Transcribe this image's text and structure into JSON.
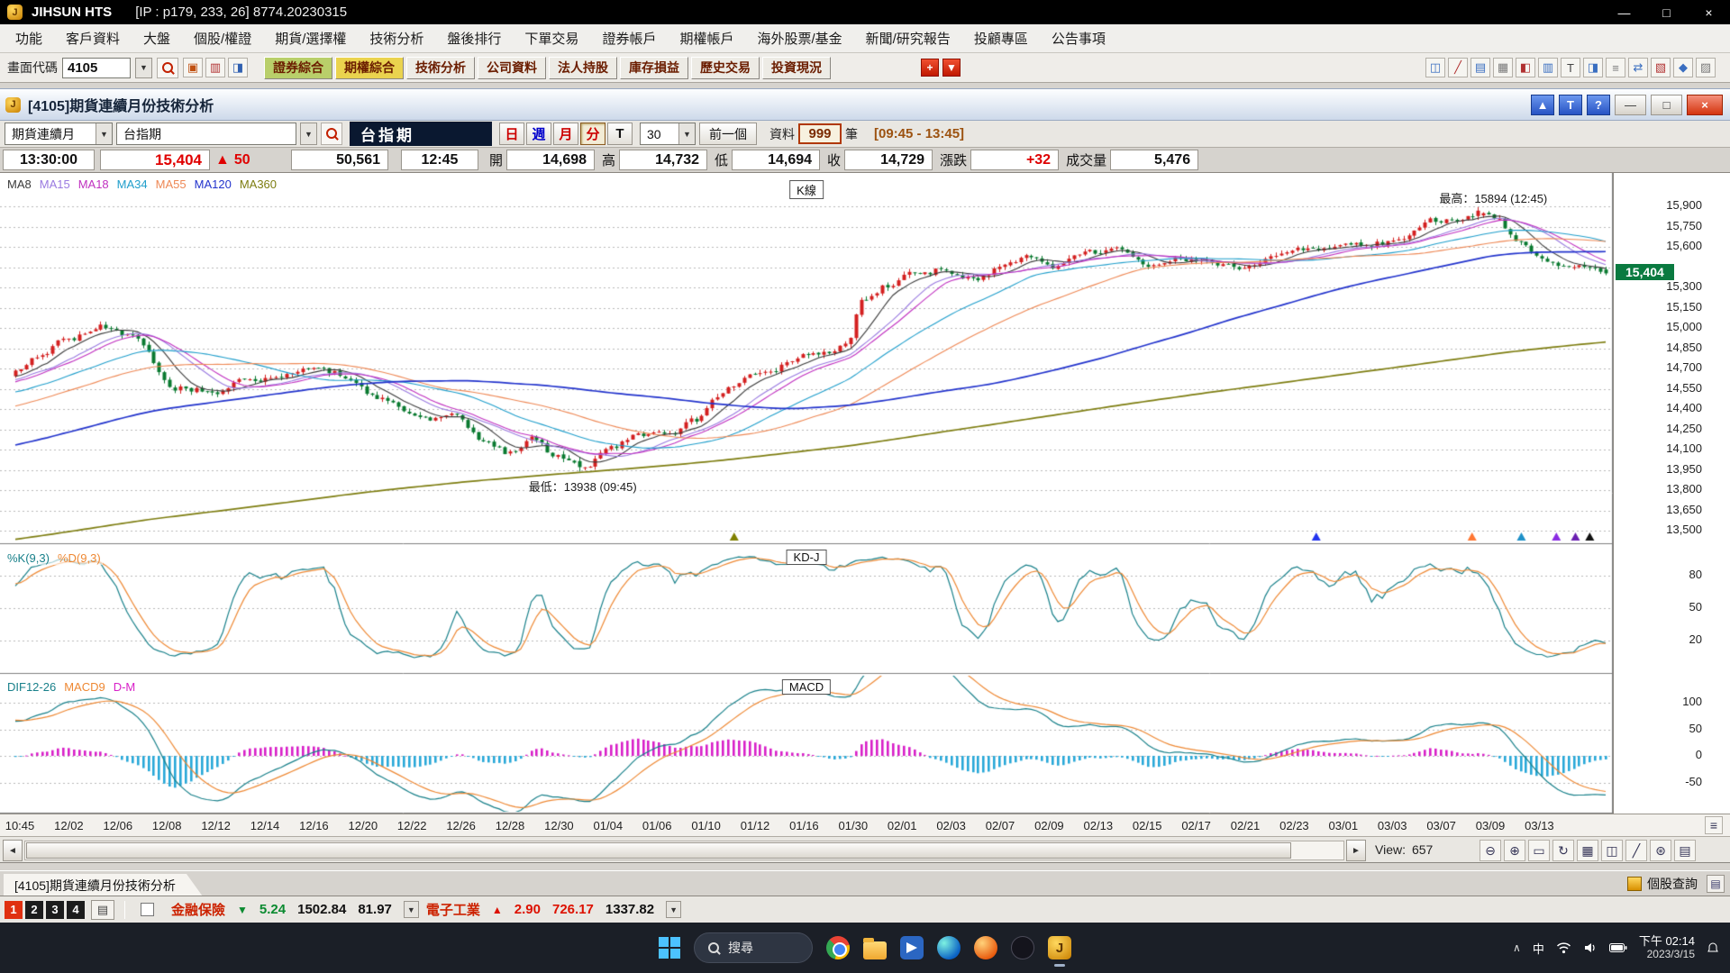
{
  "titlebar": {
    "app_name": "JIHSUN HTS",
    "session_info": "[IP : p179, 233, 26] 8774.20230315"
  },
  "icons": {
    "minimize": "—",
    "maximize": "□",
    "close": "×",
    "dropdown": "▼",
    "left_arrow": "◄",
    "right_arrow": "►"
  },
  "menubar": {
    "items": [
      "功能",
      "客戶資料",
      "大盤",
      "個股/權證",
      "期貨/選擇權",
      "技術分析",
      "盤後排行",
      "下單交易",
      "證券帳戶",
      "期權帳戶",
      "海外股票/基金",
      "新聞/研究報告",
      "投顧專區",
      "公告事項"
    ]
  },
  "toolbar": {
    "screen_code_label": "畫面代碼",
    "screen_code_value": "4105",
    "left_icons": [
      {
        "g": "▣",
        "c": "#c05010",
        "n": "layout-icon"
      },
      {
        "g": "▥",
        "c": "#b03030",
        "n": "grid-icon"
      },
      {
        "g": "◨",
        "c": "#3060b0",
        "n": "split-icon"
      }
    ],
    "quick_buttons": [
      {
        "label": "證券綜合",
        "bg": "#b9cf6a"
      },
      {
        "label": "期權綜合",
        "bg": "#ead34e"
      },
      {
        "label": "技術分析",
        "bg": "#edebe5"
      },
      {
        "label": "公司資料",
        "bg": "#edebe5"
      },
      {
        "label": "法人持股",
        "bg": "#edebe5"
      },
      {
        "label": "庫存損益",
        "bg": "#edebe5"
      },
      {
        "label": "歷史交易",
        "bg": "#edebe5"
      },
      {
        "label": "投資現況",
        "bg": "#edebe5"
      }
    ],
    "red_icons": [
      {
        "g": "+",
        "n": "add-view-icon"
      },
      {
        "g": "▼",
        "n": "more-views-icon"
      }
    ],
    "right_icons": [
      {
        "g": "◫",
        "c": "#3a6ec0",
        "n": "window-layout-icon"
      },
      {
        "g": "╱",
        "c": "#b03030",
        "n": "draw-line-icon"
      },
      {
        "g": "▤",
        "c": "#3a6ec0",
        "n": "report-icon"
      },
      {
        "g": "▦",
        "c": "#7a7a7a",
        "n": "grid-view-icon"
      },
      {
        "g": "◧",
        "c": "#b03030",
        "n": "half-view-icon"
      },
      {
        "g": "▥",
        "c": "#3a6ec0",
        "n": "columns-icon"
      },
      {
        "g": "T",
        "c": "#444444",
        "n": "text-tool-icon"
      },
      {
        "g": "◨",
        "c": "#3a6ec0",
        "n": "pane-icon"
      },
      {
        "g": "≡",
        "c": "#7a7a7a",
        "n": "list-icon"
      },
      {
        "g": "⇄",
        "c": "#3a6ec0",
        "n": "swap-icon"
      },
      {
        "g": "▧",
        "c": "#b03030",
        "n": "hatch-icon"
      },
      {
        "g": "◆",
        "c": "#3a6ec0",
        "n": "diamond-icon"
      },
      {
        "g": "▨",
        "c": "#7a7a7a",
        "n": "pattern-icon"
      }
    ]
  },
  "window": {
    "title": "[4105]期貨連續月份技術分析",
    "buttons": {
      "pin": "▲",
      "text_tool": "T",
      "help": "?"
    }
  },
  "controls": {
    "series_select": "期貨連續月",
    "symbol_combo": "台指期",
    "symbol_display": "台指期",
    "period_buttons": [
      {
        "label": "日",
        "color": "#cc0000",
        "active": false
      },
      {
        "label": "週",
        "color": "#0000cc",
        "active": false
      },
      {
        "label": "月",
        "color": "#cc0000",
        "active": false
      },
      {
        "label": "分",
        "color": "#cc0000",
        "active": true
      },
      {
        "label": "T",
        "color": "#111111",
        "active": false
      }
    ],
    "interval_value": "30",
    "prev_button": "前一個",
    "data_label": "資料",
    "data_count": "999",
    "data_unit": "筆",
    "session_range": "[09:45 - 13:45]"
  },
  "quote": {
    "time": "13:30:00",
    "last": "15,404",
    "change_arrow": "▲",
    "change": "50",
    "total_volume": "50,561",
    "bar_time": "12:45",
    "fields": [
      {
        "label": "開",
        "value": "14,698",
        "color": "#111111"
      },
      {
        "label": "高",
        "value": "14,732",
        "color": "#111111"
      },
      {
        "label": "低",
        "value": "14,694",
        "color": "#111111"
      },
      {
        "label": "收",
        "value": "14,729",
        "color": "#111111"
      },
      {
        "label": "漲跌",
        "value": "+32",
        "color": "#dd0000"
      },
      {
        "label": "成交量",
        "value": "5,476",
        "color": "#111111"
      }
    ]
  },
  "main_chart": {
    "panel_label": "K線",
    "high_annotation": "最高：15894 (12:45)",
    "low_annotation": "最低：13938 (09:45)",
    "price_badge": "15,404"
  },
  "kd": {
    "panel_label": "KD-J",
    "legend": [
      "%K(9,3)",
      "%D(9,3)"
    ],
    "colors": [
      "#18808a",
      "#ee8833"
    ],
    "ticks": [
      80,
      50,
      20
    ]
  },
  "macd": {
    "panel_label": "MACD",
    "legend": [
      "DIF12-26",
      "MACD9",
      "D-M"
    ],
    "legend_colors": [
      "#18808a",
      "#ee8833",
      "#d820c8"
    ],
    "colors": [
      "#18808a",
      "#ee8833"
    ],
    "hist_colors": [
      "#d820c8",
      "#28a8d8"
    ],
    "ticks": [
      100,
      50,
      0,
      -50
    ]
  },
  "scrollbar": {
    "view_label": "View:",
    "view_value": "657",
    "icons": [
      {
        "g": "⊖",
        "n": "zoom-out-icon"
      },
      {
        "g": "⊕",
        "n": "zoom-in-icon"
      },
      {
        "g": "▭",
        "n": "zoom-window-icon"
      },
      {
        "g": "↻",
        "n": "refresh-icon"
      },
      {
        "g": "▦",
        "n": "grid-icon"
      },
      {
        "g": "◫",
        "n": "split-panels-icon"
      },
      {
        "g": "╱",
        "n": "trendline-icon"
      },
      {
        "g": "⊛",
        "n": "settings-icon"
      },
      {
        "g": "▤",
        "n": "layers-icon"
      }
    ]
  },
  "statusbar": {
    "tab_title": "[4105]期貨連續月份技術分析",
    "right_link": "個股查詢"
  },
  "ticker": {
    "pages": [
      "1",
      "2",
      "3",
      "4"
    ],
    "groups": [
      {
        "name": "金融保險",
        "name_color": "#cc2200",
        "arrow": "▼",
        "arrow_color": "#0a8a30",
        "values": [
          {
            "v": "5.24",
            "c": "#0a8a30"
          },
          {
            "v": "1502.84",
            "c": "#111111"
          },
          {
            "v": "81.97",
            "c": "#111111"
          }
        ]
      },
      {
        "name": "電子工業",
        "name_color": "#cc2200",
        "arrow": "▲",
        "arrow_color": "#dd1100",
        "values": [
          {
            "v": "2.90",
            "c": "#dd1100"
          },
          {
            "v": "726.17",
            "c": "#dd1100"
          },
          {
            "v": "1337.82",
            "c": "#111111"
          }
        ]
      }
    ]
  },
  "taskbar": {
    "search_label": "搜尋",
    "ime": "中",
    "time": "下午 02:14",
    "date": "2023/3/15"
  },
  "chart_data": {
    "type": "candlestick",
    "symbol": "台指期",
    "interval_minutes": 30,
    "visible_bars": 300,
    "history_bars": 360,
    "seed": 20230315,
    "last_price": 15404,
    "price_axis": {
      "min": 13500,
      "max": 15900,
      "step": 150
    },
    "up_color": "#d42020",
    "down_color": "#0a7a30",
    "grid_color": "#b8b8b8",
    "high_annotation": {
      "pos": 0.92,
      "value": 15894,
      "time": "12:45"
    },
    "low_annotation": {
      "pos": 0.356,
      "value": 13938,
      "time": "09:45"
    },
    "ma": [
      {
        "label": "MA8",
        "period": 8,
        "color": "#3a3a3a"
      },
      {
        "label": "MA15",
        "period": 15,
        "color": "#9a7ae0"
      },
      {
        "label": "MA18",
        "period": 18,
        "color": "#c030c0"
      },
      {
        "label": "MA34",
        "period": 34,
        "color": "#1f9ecb"
      },
      {
        "label": "MA55",
        "period": 55,
        "color": "#ee8855"
      },
      {
        "label": "MA120",
        "period": 120,
        "color": "#2233cc"
      },
      {
        "label": "MA360",
        "period": 360,
        "color": "#7d7d10"
      }
    ],
    "close_anchors": [
      [
        0.0,
        14680
      ],
      [
        0.03,
        14900
      ],
      [
        0.055,
        15020
      ],
      [
        0.075,
        14920
      ],
      [
        0.1,
        14600
      ],
      [
        0.125,
        14560
      ],
      [
        0.15,
        14640
      ],
      [
        0.175,
        14700
      ],
      [
        0.2,
        14640
      ],
      [
        0.23,
        14420
      ],
      [
        0.255,
        14270
      ],
      [
        0.275,
        14330
      ],
      [
        0.295,
        14120
      ],
      [
        0.31,
        14050
      ],
      [
        0.325,
        14140
      ],
      [
        0.34,
        14020
      ],
      [
        0.356,
        13965
      ],
      [
        0.372,
        14070
      ],
      [
        0.39,
        14170
      ],
      [
        0.41,
        14160
      ],
      [
        0.428,
        14270
      ],
      [
        0.443,
        14480
      ],
      [
        0.458,
        14600
      ],
      [
        0.472,
        14670
      ],
      [
        0.49,
        14770
      ],
      [
        0.508,
        14820
      ],
      [
        0.522,
        14890
      ],
      [
        0.533,
        15240
      ],
      [
        0.548,
        15330
      ],
      [
        0.565,
        15390
      ],
      [
        0.585,
        15440
      ],
      [
        0.605,
        15370
      ],
      [
        0.622,
        15470
      ],
      [
        0.64,
        15500
      ],
      [
        0.658,
        15470
      ],
      [
        0.676,
        15530
      ],
      [
        0.695,
        15550
      ],
      [
        0.714,
        15500
      ],
      [
        0.733,
        15560
      ],
      [
        0.752,
        15530
      ],
      [
        0.77,
        15480
      ],
      [
        0.788,
        15550
      ],
      [
        0.806,
        15560
      ],
      [
        0.824,
        15520
      ],
      [
        0.842,
        15570
      ],
      [
        0.858,
        15620
      ],
      [
        0.874,
        15680
      ],
      [
        0.89,
        15760
      ],
      [
        0.905,
        15830
      ],
      [
        0.92,
        15868
      ],
      [
        0.932,
        15820
      ],
      [
        0.944,
        15650
      ],
      [
        0.956,
        15520
      ],
      [
        0.968,
        15450
      ],
      [
        0.98,
        15420
      ],
      [
        1.0,
        15404
      ]
    ],
    "markers": [
      {
        "pos": 0.452,
        "color": "#808000"
      },
      {
        "pos": 0.818,
        "color": "#2233ee"
      },
      {
        "pos": 0.916,
        "color": "#ff7733"
      },
      {
        "pos": 0.947,
        "color": "#1e90c8"
      },
      {
        "pos": 0.969,
        "color": "#8a2be2"
      },
      {
        "pos": 0.981,
        "color": "#6a1fb0"
      },
      {
        "pos": 0.99,
        "color": "#111111"
      }
    ],
    "x_labels": [
      "10:45",
      "12/02",
      "12/06",
      "12/08",
      "12/12",
      "12/14",
      "12/16",
      "12/20",
      "12/22",
      "12/26",
      "12/28",
      "12/30",
      "01/04",
      "01/06",
      "01/10",
      "01/12",
      "01/16",
      "01/30",
      "02/01",
      "02/03",
      "02/07",
      "02/09",
      "02/13",
      "02/15",
      "02/17",
      "02/21",
      "02/23",
      "03/01",
      "03/03",
      "03/07",
      "03/09",
      "03/13"
    ]
  }
}
